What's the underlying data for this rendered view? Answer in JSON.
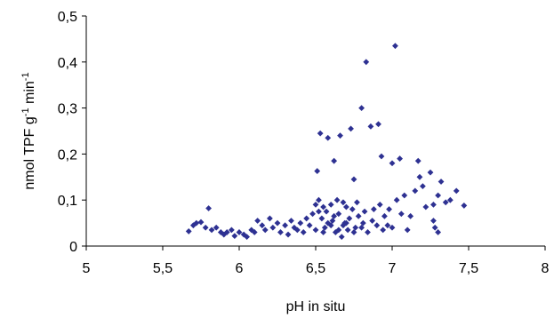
{
  "chart_data": {
    "type": "scatter",
    "xlabel": "pH in situ",
    "ylabel": {
      "parts": [
        {
          "text": "nmol TPF g",
          "sup": false
        },
        {
          "text": "-1",
          "sup": true
        },
        {
          "text": " min",
          "sup": false
        },
        {
          "text": "-1",
          "sup": true
        }
      ]
    },
    "xlim": [
      5,
      8
    ],
    "ylim": [
      0,
      0.5
    ],
    "x_ticks": [
      {
        "value": 5,
        "label": "5"
      },
      {
        "value": 5.5,
        "label": "5,5"
      },
      {
        "value": 6,
        "label": "6"
      },
      {
        "value": 6.5,
        "label": "6,5"
      },
      {
        "value": 7,
        "label": "7"
      },
      {
        "value": 7.5,
        "label": "7,5"
      },
      {
        "value": 8,
        "label": "8"
      }
    ],
    "y_ticks": [
      {
        "value": 0,
        "label": "0"
      },
      {
        "value": 0.1,
        "label": "0,1"
      },
      {
        "value": 0.2,
        "label": "0,2"
      },
      {
        "value": 0.3,
        "label": "0,3"
      },
      {
        "value": 0.4,
        "label": "0,4"
      },
      {
        "value": 0.5,
        "label": "0,5"
      }
    ],
    "grid": false,
    "legend": "none",
    "marker": "diamond",
    "color": "#2e3192",
    "series": [
      {
        "points": [
          [
            5.67,
            0.032
          ],
          [
            5.7,
            0.045
          ],
          [
            5.72,
            0.05
          ],
          [
            5.75,
            0.052
          ],
          [
            5.78,
            0.04
          ],
          [
            5.8,
            0.082
          ],
          [
            5.82,
            0.035
          ],
          [
            5.85,
            0.04
          ],
          [
            5.88,
            0.03
          ],
          [
            5.9,
            0.025
          ],
          [
            5.92,
            0.03
          ],
          [
            5.95,
            0.035
          ],
          [
            5.97,
            0.022
          ],
          [
            6.0,
            0.03
          ],
          [
            6.03,
            0.025
          ],
          [
            6.05,
            0.02
          ],
          [
            6.08,
            0.035
          ],
          [
            6.1,
            0.03
          ],
          [
            6.12,
            0.055
          ],
          [
            6.15,
            0.045
          ],
          [
            6.17,
            0.035
          ],
          [
            6.2,
            0.06
          ],
          [
            6.22,
            0.04
          ],
          [
            6.25,
            0.05
          ],
          [
            6.27,
            0.03
          ],
          [
            6.3,
            0.045
          ],
          [
            6.32,
            0.025
          ],
          [
            6.34,
            0.055
          ],
          [
            6.36,
            0.04
          ],
          [
            6.38,
            0.035
          ],
          [
            6.4,
            0.05
          ],
          [
            6.42,
            0.03
          ],
          [
            6.44,
            0.06
          ],
          [
            6.46,
            0.045
          ],
          [
            6.48,
            0.07
          ],
          [
            6.5,
            0.09
          ],
          [
            6.5,
            0.035
          ],
          [
            6.51,
            0.163
          ],
          [
            6.52,
            0.1
          ],
          [
            6.53,
            0.245
          ],
          [
            6.54,
            0.06
          ],
          [
            6.55,
            0.085
          ],
          [
            6.56,
            0.04
          ],
          [
            6.57,
            0.075
          ],
          [
            6.58,
            0.235
          ],
          [
            6.6,
            0.09
          ],
          [
            6.61,
            0.055
          ],
          [
            6.62,
            0.185
          ],
          [
            6.63,
            0.03
          ],
          [
            6.64,
            0.1
          ],
          [
            6.65,
            0.07
          ],
          [
            6.66,
            0.24
          ],
          [
            6.67,
            0.02
          ],
          [
            6.68,
            0.095
          ],
          [
            6.69,
            0.05
          ],
          [
            6.7,
            0.085
          ],
          [
            6.71,
            0.035
          ],
          [
            6.72,
            0.06
          ],
          [
            6.73,
            0.255
          ],
          [
            6.74,
            0.08
          ],
          [
            6.75,
            0.145
          ],
          [
            6.76,
            0.04
          ],
          [
            6.77,
            0.095
          ],
          [
            6.78,
            0.065
          ],
          [
            6.8,
            0.3
          ],
          [
            6.81,
            0.05
          ],
          [
            6.82,
            0.075
          ],
          [
            6.83,
            0.4
          ],
          [
            6.84,
            0.03
          ],
          [
            6.86,
            0.26
          ],
          [
            6.87,
            0.055
          ],
          [
            6.88,
            0.08
          ],
          [
            6.9,
            0.045
          ],
          [
            6.91,
            0.265
          ],
          [
            6.92,
            0.09
          ],
          [
            6.93,
            0.195
          ],
          [
            6.94,
            0.035
          ],
          [
            6.95,
            0.065
          ],
          [
            6.97,
            0.045
          ],
          [
            6.98,
            0.08
          ],
          [
            7.0,
            0.18
          ],
          [
            7.0,
            0.04
          ],
          [
            7.02,
            0.435
          ],
          [
            7.03,
            0.1
          ],
          [
            7.05,
            0.19
          ],
          [
            7.06,
            0.07
          ],
          [
            7.08,
            0.11
          ],
          [
            7.1,
            0.035
          ],
          [
            7.12,
            0.065
          ],
          [
            7.15,
            0.12
          ],
          [
            7.17,
            0.185
          ],
          [
            7.18,
            0.15
          ],
          [
            7.2,
            0.13
          ],
          [
            7.22,
            0.085
          ],
          [
            7.25,
            0.16
          ],
          [
            7.27,
            0.09
          ],
          [
            7.28,
            0.04
          ],
          [
            7.3,
            0.11
          ],
          [
            7.32,
            0.14
          ],
          [
            7.35,
            0.095
          ],
          [
            7.38,
            0.1
          ],
          [
            7.42,
            0.12
          ],
          [
            7.47,
            0.088
          ],
          [
            7.3,
            0.03
          ],
          [
            7.27,
            0.055
          ],
          [
            6.55,
            0.03
          ],
          [
            6.6,
            0.045
          ],
          [
            6.65,
            0.035
          ],
          [
            6.7,
            0.05
          ],
          [
            6.75,
            0.03
          ],
          [
            6.8,
            0.04
          ],
          [
            6.62,
            0.065
          ],
          [
            6.58,
            0.05
          ],
          [
            6.52,
            0.075
          ],
          [
            6.68,
            0.045
          ]
        ]
      }
    ]
  }
}
